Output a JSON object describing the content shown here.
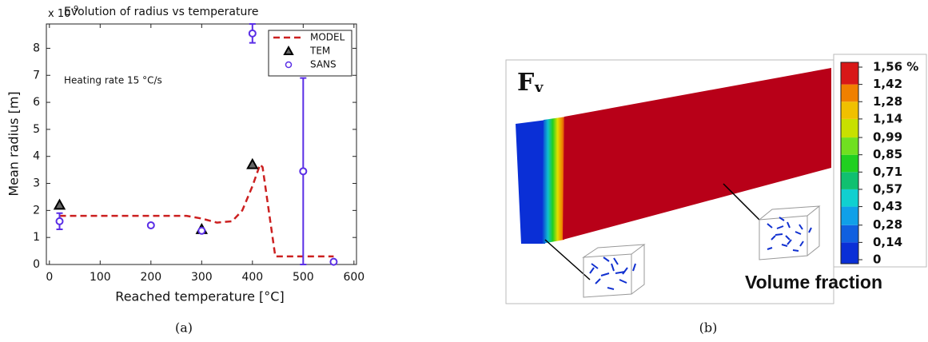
{
  "chart_data": [
    {
      "type": "line",
      "title": "Evolution of radius vs temperature",
      "x_label": "Reached temperature [°C]",
      "y_label": "Mean radius [m]",
      "y_multiplier": "x 10",
      "y_multiplier_exp": "-9",
      "annotation": "Heating rate 15 °C/s",
      "caption": "(a)",
      "xlim": [
        -6,
        605
      ],
      "ylim": [
        0,
        8.9
      ],
      "xticks": [
        0,
        100,
        200,
        300,
        400,
        500,
        600
      ],
      "yticks": [
        0,
        1,
        2,
        3,
        4,
        5,
        6,
        7,
        8
      ],
      "grid": false,
      "legend": "upper right",
      "series": [
        {
          "name": "MODEL",
          "color": "#cc2020",
          "marker": "dashed",
          "x": [
            20,
            100,
            200,
            270,
            300,
            330,
            360,
            380,
            400,
            415,
            420,
            445,
            500,
            560
          ],
          "values": [
            1.8,
            1.8,
            1.8,
            1.8,
            1.7,
            1.55,
            1.6,
            2.0,
            2.9,
            3.7,
            3.6,
            0.3,
            0.3,
            0.3
          ]
        },
        {
          "name": "TEM",
          "color": "#000000",
          "marker": "triangle",
          "x": [
            20,
            300,
            400
          ],
          "values": [
            2.2,
            1.3,
            3.7
          ]
        },
        {
          "name": "SANS",
          "color": "#5a2ee6",
          "marker": "circle",
          "x": [
            20,
            200,
            300,
            400,
            500,
            560
          ],
          "values": [
            1.6,
            1.45,
            1.25,
            8.55,
            3.45,
            0.1
          ],
          "errors": [
            0.3,
            null,
            null,
            0.35,
            3.45,
            null
          ]
        }
      ]
    },
    {
      "type": "colorbar",
      "label": "F",
      "label_sub": "v",
      "annotation": "Volume fraction",
      "caption": "(b)",
      "ylim": [
        0,
        1.56
      ],
      "yticks": [
        {
          "value": 1.56,
          "label": "1,56 %"
        },
        {
          "value": 1.42,
          "label": "1,42"
        },
        {
          "value": 1.28,
          "label": "1,28"
        },
        {
          "value": 1.14,
          "label": "1,14"
        },
        {
          "value": 0.99,
          "label": "0,99"
        },
        {
          "value": 0.85,
          "label": "0,85"
        },
        {
          "value": 0.71,
          "label": "0,71"
        },
        {
          "value": 0.57,
          "label": "0,57"
        },
        {
          "value": 0.43,
          "label": "0,43"
        },
        {
          "value": 0.28,
          "label": "0,28"
        },
        {
          "value": 0.14,
          "label": "0,14"
        },
        0
      ],
      "colors": [
        "#0a2fd6",
        "#1060e0",
        "#10a0e8",
        "#10d0d0",
        "#10c070",
        "#20d020",
        "#70e020",
        "#c8e000",
        "#f0c000",
        "#f08000",
        "#d81818"
      ]
    }
  ]
}
